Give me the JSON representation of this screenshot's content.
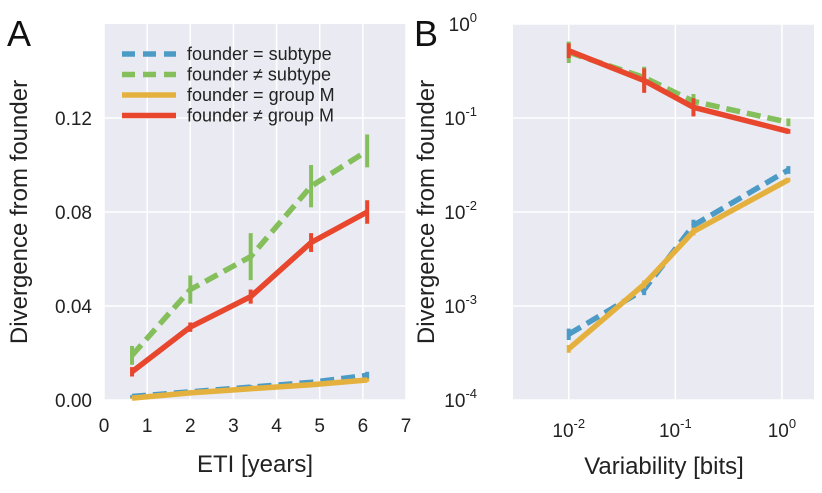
{
  "chart_data": [
    {
      "panel": "A",
      "type": "line",
      "xlabel": "ETI [years]",
      "ylabel": "Divergence from founder",
      "xscale": "linear",
      "yscale": "linear",
      "xlim": [
        0,
        7
      ],
      "ylim": [
        0,
        0.16
      ],
      "xticks": [
        0,
        1,
        2,
        3,
        4,
        5,
        6,
        7
      ],
      "xtick_labels": [
        "0",
        "1",
        "2",
        "3",
        "4",
        "5",
        "6",
        "7"
      ],
      "yticks": [
        0,
        0.04,
        0.08,
        0.12
      ],
      "ytick_labels": [
        "0.00",
        "0.04",
        "0.08",
        "0.12"
      ],
      "grid": true,
      "legend_position": "top-left",
      "series": [
        {
          "name": "founder = subtype",
          "color": "#4c9bc6",
          "dash": "dashed",
          "x": [
            0.65,
            2.0,
            3.4,
            4.8,
            6.1
          ],
          "values": [
            0.0015,
            0.0035,
            0.0055,
            0.0075,
            0.0105
          ],
          "err": [
            0.0005,
            0.0006,
            0.0008,
            0.0009,
            0.0015
          ]
        },
        {
          "name": "founder ≠ subtype",
          "color": "#84bf5c",
          "dash": "dashed",
          "x": [
            0.65,
            2.0,
            3.4,
            4.8,
            6.1
          ],
          "values": [
            0.019,
            0.047,
            0.061,
            0.091,
            0.106
          ],
          "err": [
            0.004,
            0.006,
            0.01,
            0.009,
            0.007
          ]
        },
        {
          "name": "founder = group M",
          "color": "#e4b13f",
          "dash": "solid",
          "x": [
            0.65,
            2.0,
            3.4,
            4.8,
            6.1
          ],
          "values": [
            0.0008,
            0.003,
            0.0048,
            0.0065,
            0.0085
          ],
          "err": [
            0.0003,
            0.0004,
            0.0005,
            0.0006,
            0.0007
          ]
        },
        {
          "name": "founder ≠ group M",
          "color": "#e8472e",
          "dash": "solid",
          "x": [
            0.65,
            2.0,
            3.4,
            4.8,
            6.1
          ],
          "values": [
            0.012,
            0.031,
            0.044,
            0.067,
            0.08
          ],
          "err": [
            0.002,
            0.002,
            0.003,
            0.004,
            0.005
          ]
        }
      ]
    },
    {
      "panel": "B",
      "type": "line",
      "xlabel": "Variability [bits]",
      "ylabel": "Divergence from founder",
      "xscale": "log",
      "yscale": "log",
      "xlim": [
        0.003,
        2.0
      ],
      "ylim": [
        0.0001,
        1.0
      ],
      "xticks": [
        0.01,
        0.1,
        1
      ],
      "xtick_labels": [
        [
          "10",
          "-2"
        ],
        [
          "10",
          "-1"
        ],
        [
          "10",
          "0"
        ]
      ],
      "yticks": [
        0.0001,
        0.001,
        0.01,
        0.1,
        1
      ],
      "ytick_labels": [
        [
          "10",
          "-4"
        ],
        [
          "10",
          "-3"
        ],
        [
          "10",
          "-2"
        ],
        [
          "10",
          "-1"
        ],
        [
          "10",
          "0"
        ]
      ],
      "grid": true,
      "series": [
        {
          "name": "founder = subtype",
          "color": "#4c9bc6",
          "dash": "dashed",
          "x": [
            0.01,
            0.051,
            0.148,
            1.15
          ],
          "values": [
            0.0005,
            0.0015,
            0.0072,
            0.028
          ],
          "err_factor": [
            1.15,
            1.15,
            1.15,
            1.1
          ]
        },
        {
          "name": "founder ≠ subtype",
          "color": "#84bf5c",
          "dash": "dashed",
          "x": [
            0.01,
            0.051,
            0.148,
            1.15
          ],
          "values": [
            0.5,
            0.27,
            0.15,
            0.09
          ],
          "err_factor": [
            1.3,
            1.3,
            1.2,
            1.1
          ]
        },
        {
          "name": "founder = group M",
          "color": "#e4b13f",
          "dash": "solid",
          "x": [
            0.01,
            0.051,
            0.148,
            1.15
          ],
          "values": [
            0.00035,
            0.0017,
            0.0062,
            0.022
          ],
          "err_factor": [
            1.1,
            1.1,
            1.1,
            1.05
          ]
        },
        {
          "name": "founder ≠ group M",
          "color": "#e8472e",
          "dash": "solid",
          "x": [
            0.01,
            0.051,
            0.148,
            1.15
          ],
          "values": [
            0.52,
            0.25,
            0.13,
            0.072
          ],
          "err_factor": [
            1.2,
            1.35,
            1.25,
            1.06
          ]
        }
      ]
    }
  ]
}
